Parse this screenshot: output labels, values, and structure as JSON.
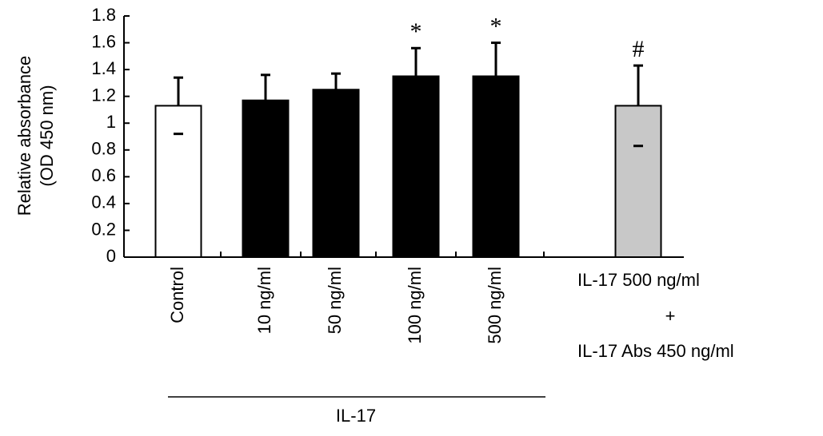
{
  "chart_data": {
    "type": "bar",
    "ylabel": [
      "Relative absorbance",
      "(OD 450 nm)"
    ],
    "categories": [
      "Control",
      "10 ng/ml",
      "50 ng/ml",
      "100 ng/ml",
      "500 ng/ml",
      [
        "IL-17 500 ng/ml",
        "+",
        "IL-17 Abs 450 ng/ml"
      ]
    ],
    "values": [
      1.13,
      1.17,
      1.25,
      1.35,
      1.35,
      1.13
    ],
    "errors": [
      0.21,
      0.19,
      0.12,
      0.21,
      0.25,
      0.3
    ],
    "colors": [
      "#ffffff",
      "#000000",
      "#000000",
      "#000000",
      "#000000",
      "#c8c8c8"
    ],
    "annotations": [
      null,
      null,
      null,
      "*",
      "*",
      "#"
    ],
    "group_label": "IL-17",
    "ylim": [
      0,
      1.8
    ],
    "yticks": [
      0,
      0.2,
      0.4,
      0.6,
      0.8,
      1,
      1.2,
      1.4,
      1.6,
      1.8
    ]
  }
}
